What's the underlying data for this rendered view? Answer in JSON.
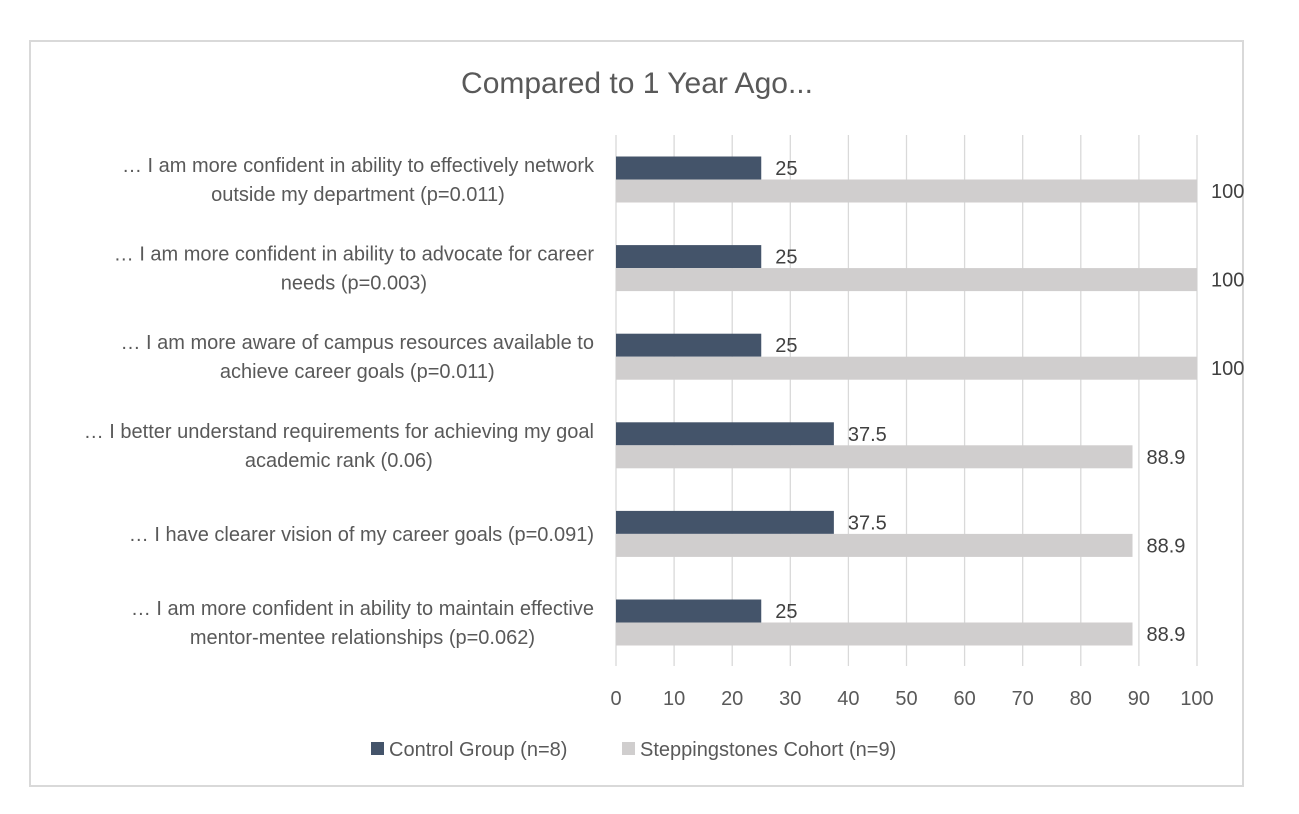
{
  "chart_data": {
    "type": "bar",
    "orientation": "horizontal",
    "title": "Compared to 1 Year Ago...",
    "categories": [
      [
        "… I am more confident in ability to effectively network",
        "outside my department (p=0.011)"
      ],
      [
        "… I am more confident in ability to advocate for career",
        "needs (p=0.003)"
      ],
      [
        "… I am more aware of campus resources available to",
        "achieve career goals (p=0.011)"
      ],
      [
        "… I better understand requirements for achieving my goal",
        "academic rank (0.06)"
      ],
      [
        "… I have clearer vision of my career goals (p=0.091)"
      ],
      [
        "… I am more confident in ability to maintain effective",
        "mentor-mentee relationships (p=0.062)"
      ]
    ],
    "series": [
      {
        "name": "Control Group (n=8)",
        "color": "#44546a",
        "values": [
          25,
          25,
          25,
          37.5,
          37.5,
          25
        ],
        "labels": [
          "25",
          "25",
          "25",
          "37.5",
          "37.5",
          "25"
        ]
      },
      {
        "name": "Steppingstones Cohort (n=9)",
        "color": "#d0cece",
        "values": [
          100,
          100,
          100,
          88.9,
          88.9,
          88.9
        ],
        "labels": [
          "100",
          "100",
          "100",
          "88.9",
          "88.9",
          "88.9"
        ]
      }
    ],
    "xlim": [
      0,
      100
    ],
    "x_ticks": [
      "0",
      "10",
      "20",
      "30",
      "40",
      "50",
      "60",
      "70",
      "80",
      "90",
      "100"
    ],
    "xlabel": "",
    "ylabel": "",
    "grid": "vertical",
    "gridline_color": "#d9d9d9",
    "legend_position": "bottom"
  }
}
